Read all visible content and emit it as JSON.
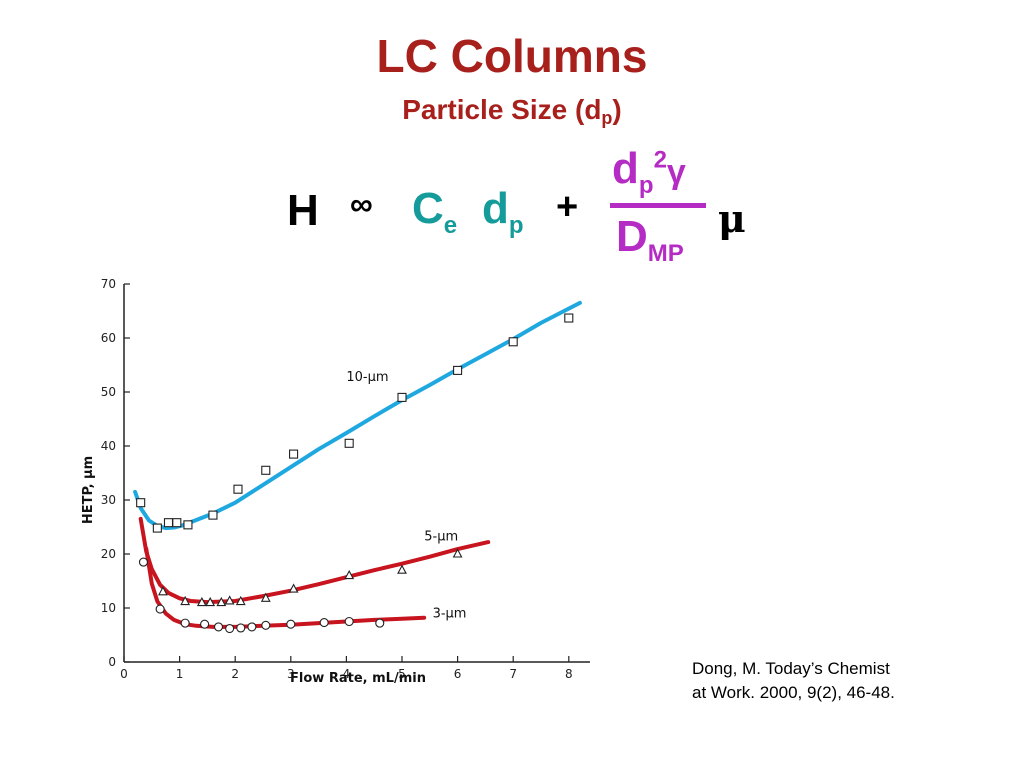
{
  "slide": {
    "title": "LC Columns",
    "subtitle_text": "Particle Size (d",
    "subtitle_sub": "p",
    "subtitle_close": ")"
  },
  "equation": {
    "H": "H",
    "proportional": "∞",
    "Ce_base": "C",
    "Ce_sub": "e",
    "dp_base": "d",
    "dp_sub": "p",
    "plus": "+",
    "num_base": "d",
    "num_sub": "p",
    "num_sup": "2",
    "num_gamma": "γ",
    "den_base": "D",
    "den_sub": "MP",
    "mu": "μ"
  },
  "citation": {
    "line1": "Dong, M.  Today’s Chemist",
    "line2": "at Work. 2000, 9(2), 46-48."
  },
  "colors": {
    "title": "#a8201c",
    "teal": "#169b9b",
    "purple": "#b42cc4",
    "curve_10um": "#1fa8e0",
    "curve_5um": "#c8141e",
    "curve_3um": "#c8141e"
  },
  "chart_data": {
    "type": "scatter",
    "xlabel": "Flow Rate, mL/min",
    "ylabel": "HETP, µm",
    "xlim": [
      0,
      8.4
    ],
    "ylim": [
      0,
      70
    ],
    "xticks": [
      0,
      1,
      2,
      3,
      4,
      5,
      6,
      7,
      8
    ],
    "yticks": [
      0,
      10,
      20,
      30,
      40,
      50,
      60,
      70
    ],
    "grid": false,
    "series": [
      {
        "name": "10-µm",
        "marker": "square",
        "points": [
          [
            0.3,
            29.5
          ],
          [
            0.6,
            24.8
          ],
          [
            0.8,
            25.8
          ],
          [
            0.95,
            25.8
          ],
          [
            1.15,
            25.4
          ],
          [
            1.6,
            27.2
          ],
          [
            2.05,
            32.0
          ],
          [
            2.55,
            35.5
          ],
          [
            3.05,
            38.5
          ],
          [
            4.05,
            40.5
          ],
          [
            5.0,
            49.0
          ],
          [
            6.0,
            54.0
          ],
          [
            7.0,
            59.3
          ],
          [
            8.0,
            63.7
          ]
        ],
        "curve": [
          [
            0.2,
            31.5
          ],
          [
            0.3,
            28.5
          ],
          [
            0.45,
            26.2
          ],
          [
            0.6,
            25.2
          ],
          [
            0.75,
            24.8
          ],
          [
            0.9,
            24.9
          ],
          [
            1.05,
            25.3
          ],
          [
            1.3,
            26.3
          ],
          [
            1.6,
            27.5
          ],
          [
            2.0,
            29.5
          ],
          [
            2.5,
            32.8
          ],
          [
            3.0,
            36.1
          ],
          [
            3.5,
            39.4
          ],
          [
            4.0,
            42.4
          ],
          [
            4.5,
            45.5
          ],
          [
            5.0,
            48.5
          ],
          [
            5.5,
            51.3
          ],
          [
            6.0,
            54.2
          ],
          [
            6.5,
            57.0
          ],
          [
            7.0,
            59.8
          ],
          [
            7.5,
            62.8
          ],
          [
            8.2,
            66.5
          ]
        ]
      },
      {
        "name": "5-µm",
        "marker": "triangle",
        "points": [
          [
            0.7,
            13.0
          ],
          [
            1.1,
            11.2
          ],
          [
            1.4,
            11.0
          ],
          [
            1.55,
            11.0
          ],
          [
            1.75,
            11.0
          ],
          [
            1.9,
            11.3
          ],
          [
            2.1,
            11.2
          ],
          [
            2.55,
            11.8
          ],
          [
            3.05,
            13.5
          ],
          [
            4.05,
            16.0
          ],
          [
            5.0,
            17.0
          ],
          [
            6.0,
            20.0
          ]
        ],
        "curve": [
          [
            0.3,
            26.5
          ],
          [
            0.4,
            20.5
          ],
          [
            0.5,
            17.2
          ],
          [
            0.65,
            14.3
          ],
          [
            0.8,
            12.8
          ],
          [
            1.0,
            11.8
          ],
          [
            1.2,
            11.3
          ],
          [
            1.5,
            11.1
          ],
          [
            2.0,
            11.3
          ],
          [
            2.5,
            12.2
          ],
          [
            3.0,
            13.2
          ],
          [
            3.5,
            14.4
          ],
          [
            4.0,
            15.7
          ],
          [
            4.5,
            17.0
          ],
          [
            5.0,
            18.2
          ],
          [
            5.5,
            19.5
          ],
          [
            6.0,
            20.9
          ],
          [
            6.55,
            22.2
          ]
        ]
      },
      {
        "name": "3-µm",
        "marker": "circle",
        "points": [
          [
            0.35,
            18.5
          ],
          [
            0.65,
            9.8
          ],
          [
            1.1,
            7.2
          ],
          [
            1.45,
            7.0
          ],
          [
            1.7,
            6.5
          ],
          [
            1.9,
            6.2
          ],
          [
            2.1,
            6.3
          ],
          [
            2.3,
            6.5
          ],
          [
            2.55,
            6.8
          ],
          [
            3.0,
            7.0
          ],
          [
            3.6,
            7.3
          ],
          [
            4.05,
            7.5
          ],
          [
            4.6,
            7.2
          ]
        ],
        "curve": [
          [
            0.4,
            21.0
          ],
          [
            0.5,
            14.5
          ],
          [
            0.6,
            11.2
          ],
          [
            0.75,
            9.0
          ],
          [
            0.9,
            7.8
          ],
          [
            1.1,
            7.0
          ],
          [
            1.3,
            6.7
          ],
          [
            1.6,
            6.5
          ],
          [
            2.0,
            6.5
          ],
          [
            2.5,
            6.7
          ],
          [
            3.0,
            6.9
          ],
          [
            3.5,
            7.2
          ],
          [
            4.0,
            7.5
          ],
          [
            4.5,
            7.8
          ],
          [
            5.0,
            8.0
          ],
          [
            5.4,
            8.2
          ]
        ]
      }
    ],
    "labels": [
      {
        "text": "10-µm",
        "x": 4.0,
        "y": 52.0
      },
      {
        "text": "5-µm",
        "x": 5.4,
        "y": 22.5
      },
      {
        "text": "3-µm",
        "x": 5.55,
        "y": 8.2
      }
    ]
  }
}
